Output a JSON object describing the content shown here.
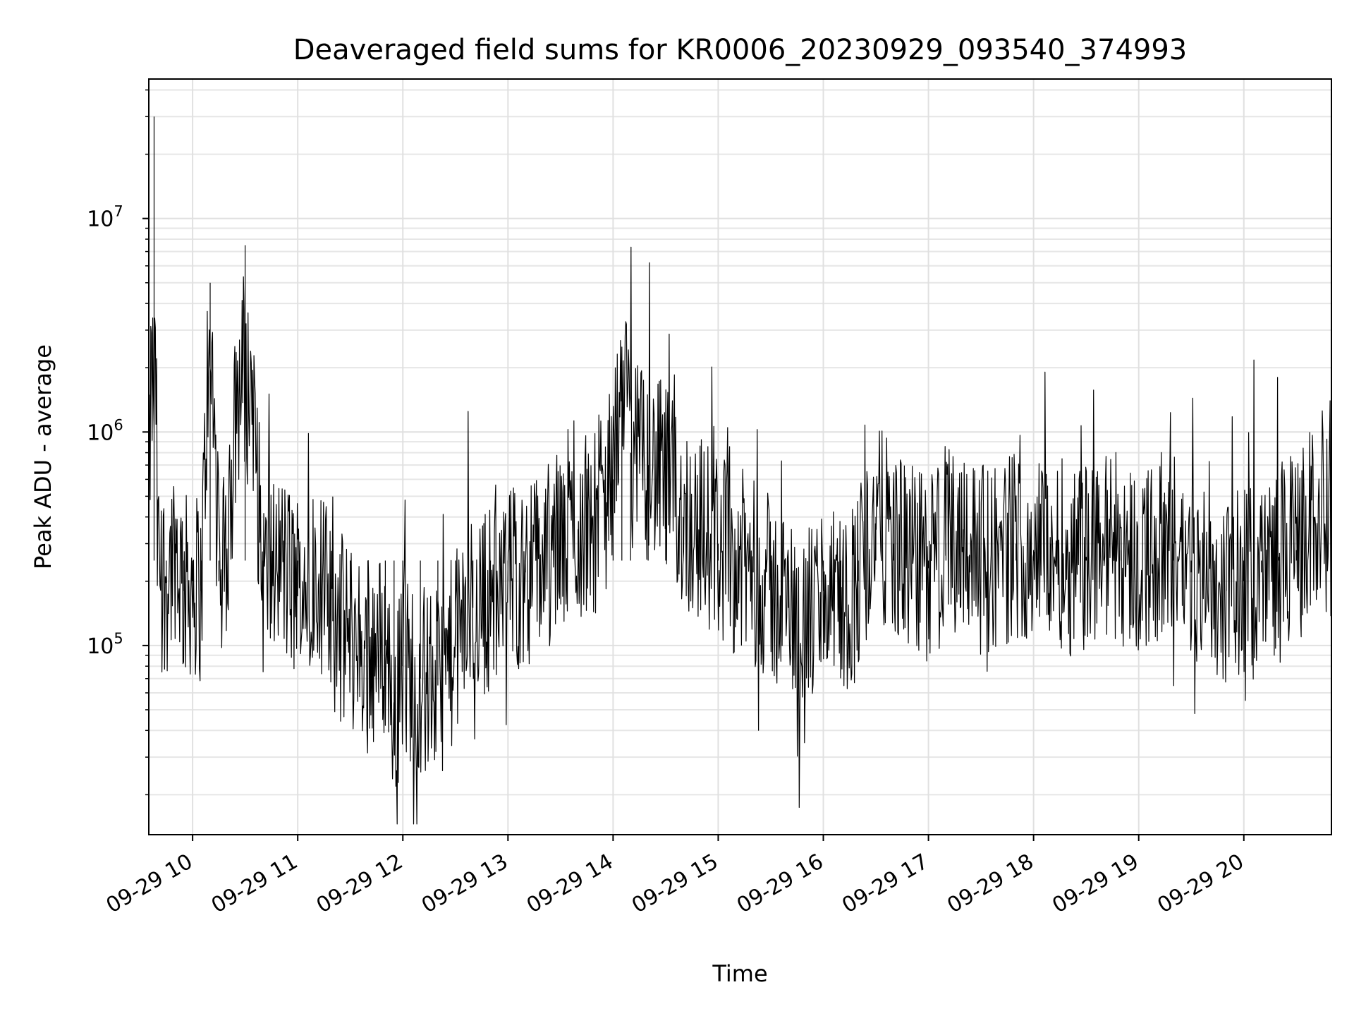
{
  "chart_data": {
    "type": "line",
    "title": "Deaveraged field sums for KR0006_20230929_093540_374993",
    "xlabel": "Time",
    "ylabel": "Peak ADU - average",
    "yscale": "log",
    "ylim": [
      13000,
      45000000
    ],
    "xlim": [
      "2023-09-29 09:35",
      "2023-09-29 20:50"
    ],
    "x_ticks": [
      "09-29 10",
      "09-29 11",
      "09-29 12",
      "09-29 13",
      "09-29 14",
      "09-29 15",
      "09-29 16",
      "09-29 17",
      "09-29 18",
      "09-29 19",
      "09-29 20"
    ],
    "y_ticks": [
      {
        "base": "10",
        "exp": "5",
        "value": 100000
      },
      {
        "base": "10",
        "exp": "6",
        "value": 1000000
      },
      {
        "base": "10",
        "exp": "7",
        "value": 10000000
      }
    ],
    "grid": true,
    "line_color": "#000000",
    "series": [
      {
        "x": [
          "2023-09-29 09:35",
          "2023-09-29 09:38",
          "2023-09-29 09:40",
          "2023-09-29 09:45",
          "2023-09-29 09:50",
          "2023-09-29 09:55",
          "2023-09-29 10:00",
          "2023-09-29 10:05",
          "2023-09-29 10:10",
          "2023-09-29 10:15",
          "2023-09-29 10:20",
          "2023-09-29 10:30",
          "2023-09-29 10:40",
          "2023-09-29 10:50",
          "2023-09-29 11:00",
          "2023-09-29 11:10",
          "2023-09-29 11:20",
          "2023-09-29 11:30",
          "2023-09-29 11:40",
          "2023-09-29 11:50",
          "2023-09-29 11:55",
          "2023-09-29 12:00",
          "2023-09-29 12:10",
          "2023-09-29 12:20",
          "2023-09-29 12:30",
          "2023-09-29 12:40",
          "2023-09-29 12:50",
          "2023-09-29 13:00",
          "2023-09-29 13:10",
          "2023-09-29 13:20",
          "2023-09-29 13:30",
          "2023-09-29 13:40",
          "2023-09-29 13:50",
          "2023-09-29 14:00",
          "2023-09-29 14:05",
          "2023-09-29 14:10",
          "2023-09-29 14:20",
          "2023-09-29 14:30",
          "2023-09-29 14:40",
          "2023-09-29 14:50",
          "2023-09-29 15:00",
          "2023-09-29 15:10",
          "2023-09-29 15:20",
          "2023-09-29 15:30",
          "2023-09-29 15:40",
          "2023-09-29 15:50",
          "2023-09-29 16:00",
          "2023-09-29 16:10",
          "2023-09-29 16:20",
          "2023-09-29 16:30",
          "2023-09-29 16:40",
          "2023-09-29 16:50",
          "2023-09-29 17:00",
          "2023-09-29 17:10",
          "2023-09-29 17:20",
          "2023-09-29 17:30",
          "2023-09-29 17:40",
          "2023-09-29 17:50",
          "2023-09-29 18:00",
          "2023-09-29 18:10",
          "2023-09-29 18:20",
          "2023-09-29 18:30",
          "2023-09-29 18:40",
          "2023-09-29 18:50",
          "2023-09-29 19:00",
          "2023-09-29 19:10",
          "2023-09-29 19:20",
          "2023-09-29 19:30",
          "2023-09-29 19:40",
          "2023-09-29 19:50",
          "2023-09-29 20:00",
          "2023-09-29 20:10",
          "2023-09-29 20:20",
          "2023-09-29 20:30",
          "2023-09-29 20:40",
          "2023-09-29 20:50"
        ],
        "y": [
          300000,
          30000000,
          250000,
          200000,
          300000,
          180000,
          200000,
          180000,
          5000000,
          200000,
          250000,
          7500000,
          200000,
          250000,
          170000,
          250000,
          130000,
          110000,
          90000,
          100000,
          50000,
          80000,
          70000,
          65000,
          100000,
          150000,
          170000,
          200000,
          220000,
          250000,
          300000,
          350000,
          400000,
          600000,
          2500000,
          800000,
          700000,
          600000,
          400000,
          350000,
          300000,
          250000,
          220000,
          180000,
          150000,
          120000,
          180000,
          150000,
          200000,
          400000,
          300000,
          250000,
          230000,
          300000,
          350000,
          250000,
          270000,
          300000,
          280000,
          300000,
          250000,
          260000,
          300000,
          280000,
          250000,
          280000,
          300000,
          220000,
          200000,
          180000,
          200000,
          220000,
          260000,
          280000,
          400000,
          550000
        ]
      }
    ]
  }
}
